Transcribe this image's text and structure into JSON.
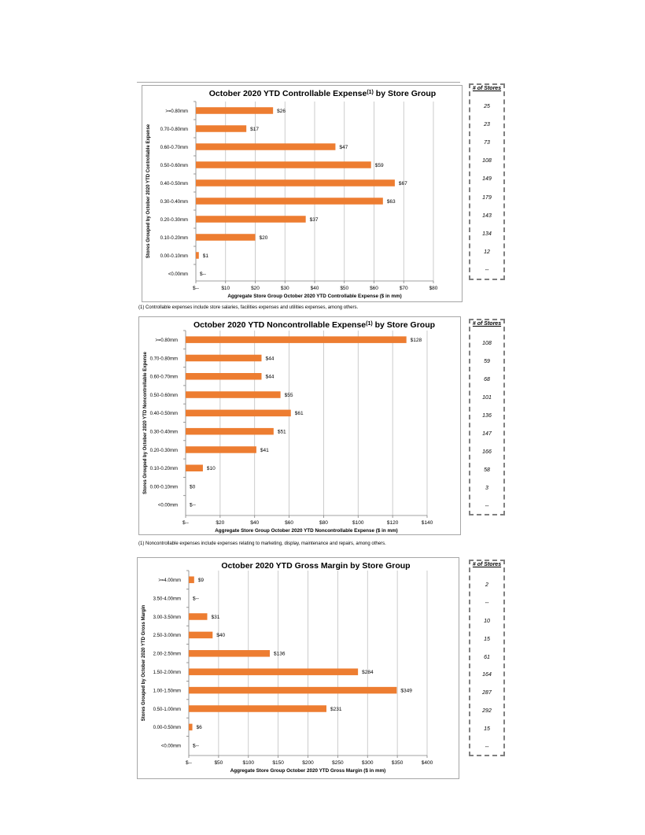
{
  "colors": {
    "bar": "#ED7D31",
    "grid": "#bfbfbf",
    "axis": "#808080"
  },
  "stores_header": "# of Stores",
  "footnotes": {
    "controllable": "(1) Controllable expenses include store salaries, facilities expenses and utilities expenses, among others.",
    "noncontrollable": "(1) Noncontrollable expenses include expenses relating to marketing, display, maintenance and repairs, among others."
  },
  "chart_data": [
    {
      "type": "bar",
      "orientation": "horizontal",
      "title": "October 2020 YTD Controllable Expense",
      "title_sup": "(1)",
      "title_suffix": " by Store Group",
      "xlabel": "Aggregate Store Group October 2020 YTD Controllable Expense ($ in mm)",
      "ylabel": "Stores Grouped by October 2020 YTD Controllable Expense",
      "categories": [
        ">=0.80mm",
        "0.70-0.80mm",
        "0.60-0.70mm",
        "0.50-0.60mm",
        "0.40-0.50mm",
        "0.30-0.40mm",
        "0.20-0.30mm",
        "0.10-0.20mm",
        "0.00-0.10mm",
        "<0.00mm"
      ],
      "values": [
        26,
        17,
        47,
        59,
        67,
        63,
        37,
        20,
        1,
        0
      ],
      "data_labels": [
        "$26",
        "$17",
        "$47",
        "$59",
        "$67",
        "$63",
        "$37",
        "$20",
        "$1",
        "$--"
      ],
      "xlim": [
        0,
        80
      ],
      "xticks": [
        0,
        10,
        20,
        30,
        40,
        50,
        60,
        70,
        80
      ],
      "xtick_labels": [
        "$--",
        "$10",
        "$20",
        "$30",
        "$40",
        "$50",
        "$60",
        "$70",
        "$80"
      ],
      "grid": true,
      "store_counts": [
        "25",
        "23",
        "73",
        "108",
        "149",
        "179",
        "143",
        "134",
        "12",
        "--"
      ]
    },
    {
      "type": "bar",
      "orientation": "horizontal",
      "title": "October 2020 YTD Noncontrollable Expense",
      "title_sup": "(1)",
      "title_suffix": " by Store Group",
      "xlabel": "Aggregate Store Group October 2020 YTD Noncontrollable Expense ($ in mm)",
      "ylabel": "Stores Grouped by October 2020 YTD Noncontrollable Expense",
      "categories": [
        ">=0.80mm",
        "0.70-0.80mm",
        "0.60-0.70mm",
        "0.50-0.60mm",
        "0.40-0.50mm",
        "0.30-0.40mm",
        "0.20-0.30mm",
        "0.10-0.20mm",
        "0.00-0.10mm",
        "<0.00mm"
      ],
      "values": [
        128,
        44,
        44,
        55,
        61,
        51,
        41,
        10,
        0,
        0
      ],
      "data_labels": [
        "$128",
        "$44",
        "$44",
        "$55",
        "$61",
        "$51",
        "$41",
        "$10",
        "$0",
        "$--"
      ],
      "xlim": [
        0,
        140
      ],
      "xticks": [
        0,
        20,
        40,
        60,
        80,
        100,
        120,
        140
      ],
      "xtick_labels": [
        "$--",
        "$20",
        "$40",
        "$60",
        "$80",
        "$100",
        "$120",
        "$140"
      ],
      "grid": true,
      "store_counts": [
        "108",
        "59",
        "68",
        "101",
        "136",
        "147",
        "166",
        "58",
        "3",
        "--"
      ]
    },
    {
      "type": "bar",
      "orientation": "horizontal",
      "title": "October 2020 YTD Gross Margin by Store Group",
      "title_sup": "",
      "title_suffix": "",
      "xlabel": "Aggregate Store Group October 2020 YTD Gross Margin ($ in mm)",
      "ylabel": "Stores Grouped by October 2020 YTD Gross Margin",
      "categories": [
        ">=4.00mm",
        "3.50-4.00mm",
        "3.00-3.50mm",
        "2.50-3.00mm",
        "2.00-2.50mm",
        "1.50-2.00mm",
        "1.00-1.50mm",
        "0.50-1.00mm",
        "0.00-0.50mm",
        "<0.00mm"
      ],
      "values": [
        9,
        0,
        31,
        40,
        136,
        284,
        349,
        231,
        6,
        0
      ],
      "data_labels": [
        "$9",
        "$--",
        "$31",
        "$40",
        "$136",
        "$284",
        "$349",
        "$231",
        "$6",
        "$--"
      ],
      "xlim": [
        0,
        400
      ],
      "xticks": [
        0,
        50,
        100,
        150,
        200,
        250,
        300,
        350,
        400
      ],
      "xtick_labels": [
        "$--",
        "$50",
        "$100",
        "$150",
        "$200",
        "$250",
        "$300",
        "$350",
        "$400"
      ],
      "grid": true,
      "store_counts": [
        "2",
        "--",
        "10",
        "15",
        "61",
        "164",
        "287",
        "292",
        "15",
        "--"
      ]
    }
  ]
}
